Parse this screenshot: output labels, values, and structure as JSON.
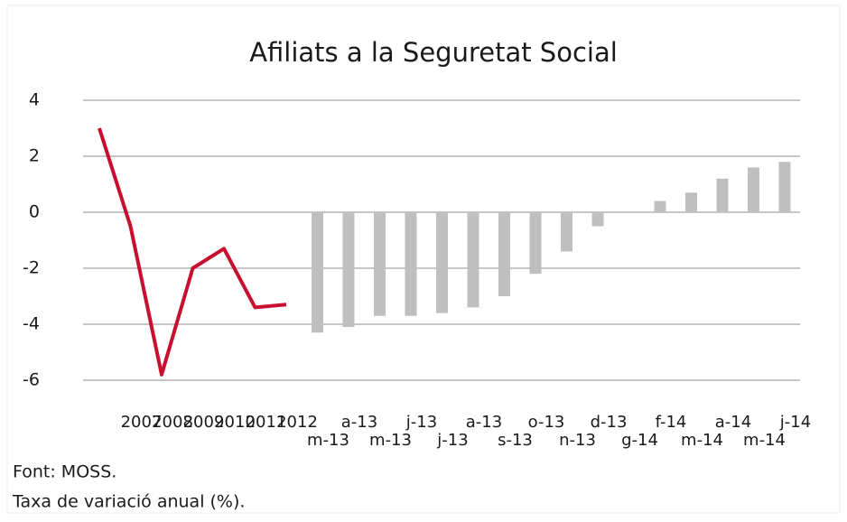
{
  "chart_data": {
    "type": "combo",
    "title": "Afiliats a la Seguretat Social",
    "categories": [
      null,
      "2007",
      "2008",
      "2009",
      "2010",
      "2011",
      "2012",
      "m-13",
      "a-13",
      "m-13",
      "j-13",
      "j-13",
      "a-13",
      "s-13",
      "o-13",
      "n-13",
      "d-13",
      "g-14",
      "f-14",
      "m-14",
      "a-14",
      "m-14",
      "j-14"
    ],
    "series": [
      {
        "type": "line",
        "color": "#c8102e",
        "values": [
          3.0,
          -0.5,
          -5.8,
          -2.0,
          -1.3,
          -3.4,
          -3.3,
          null,
          null,
          null,
          null,
          null,
          null,
          null,
          null,
          null,
          null,
          null,
          null,
          null,
          null,
          null,
          null
        ]
      },
      {
        "type": "bar",
        "color": "#bfbfbf",
        "values": [
          null,
          null,
          null,
          null,
          null,
          null,
          null,
          -4.3,
          -4.1,
          -3.7,
          -3.7,
          -3.6,
          -3.4,
          -3.0,
          -2.2,
          -1.4,
          -0.5,
          0,
          0.4,
          0.7,
          1.2,
          1.6,
          1.8
        ]
      }
    ],
    "ylim": [
      -7,
      4
    ],
    "yticks": [
      -6,
      -4,
      -2,
      0,
      2,
      4
    ],
    "grid": true,
    "notes": [
      "Font: MOSS.",
      "Taxa de variació anual (%)."
    ]
  }
}
